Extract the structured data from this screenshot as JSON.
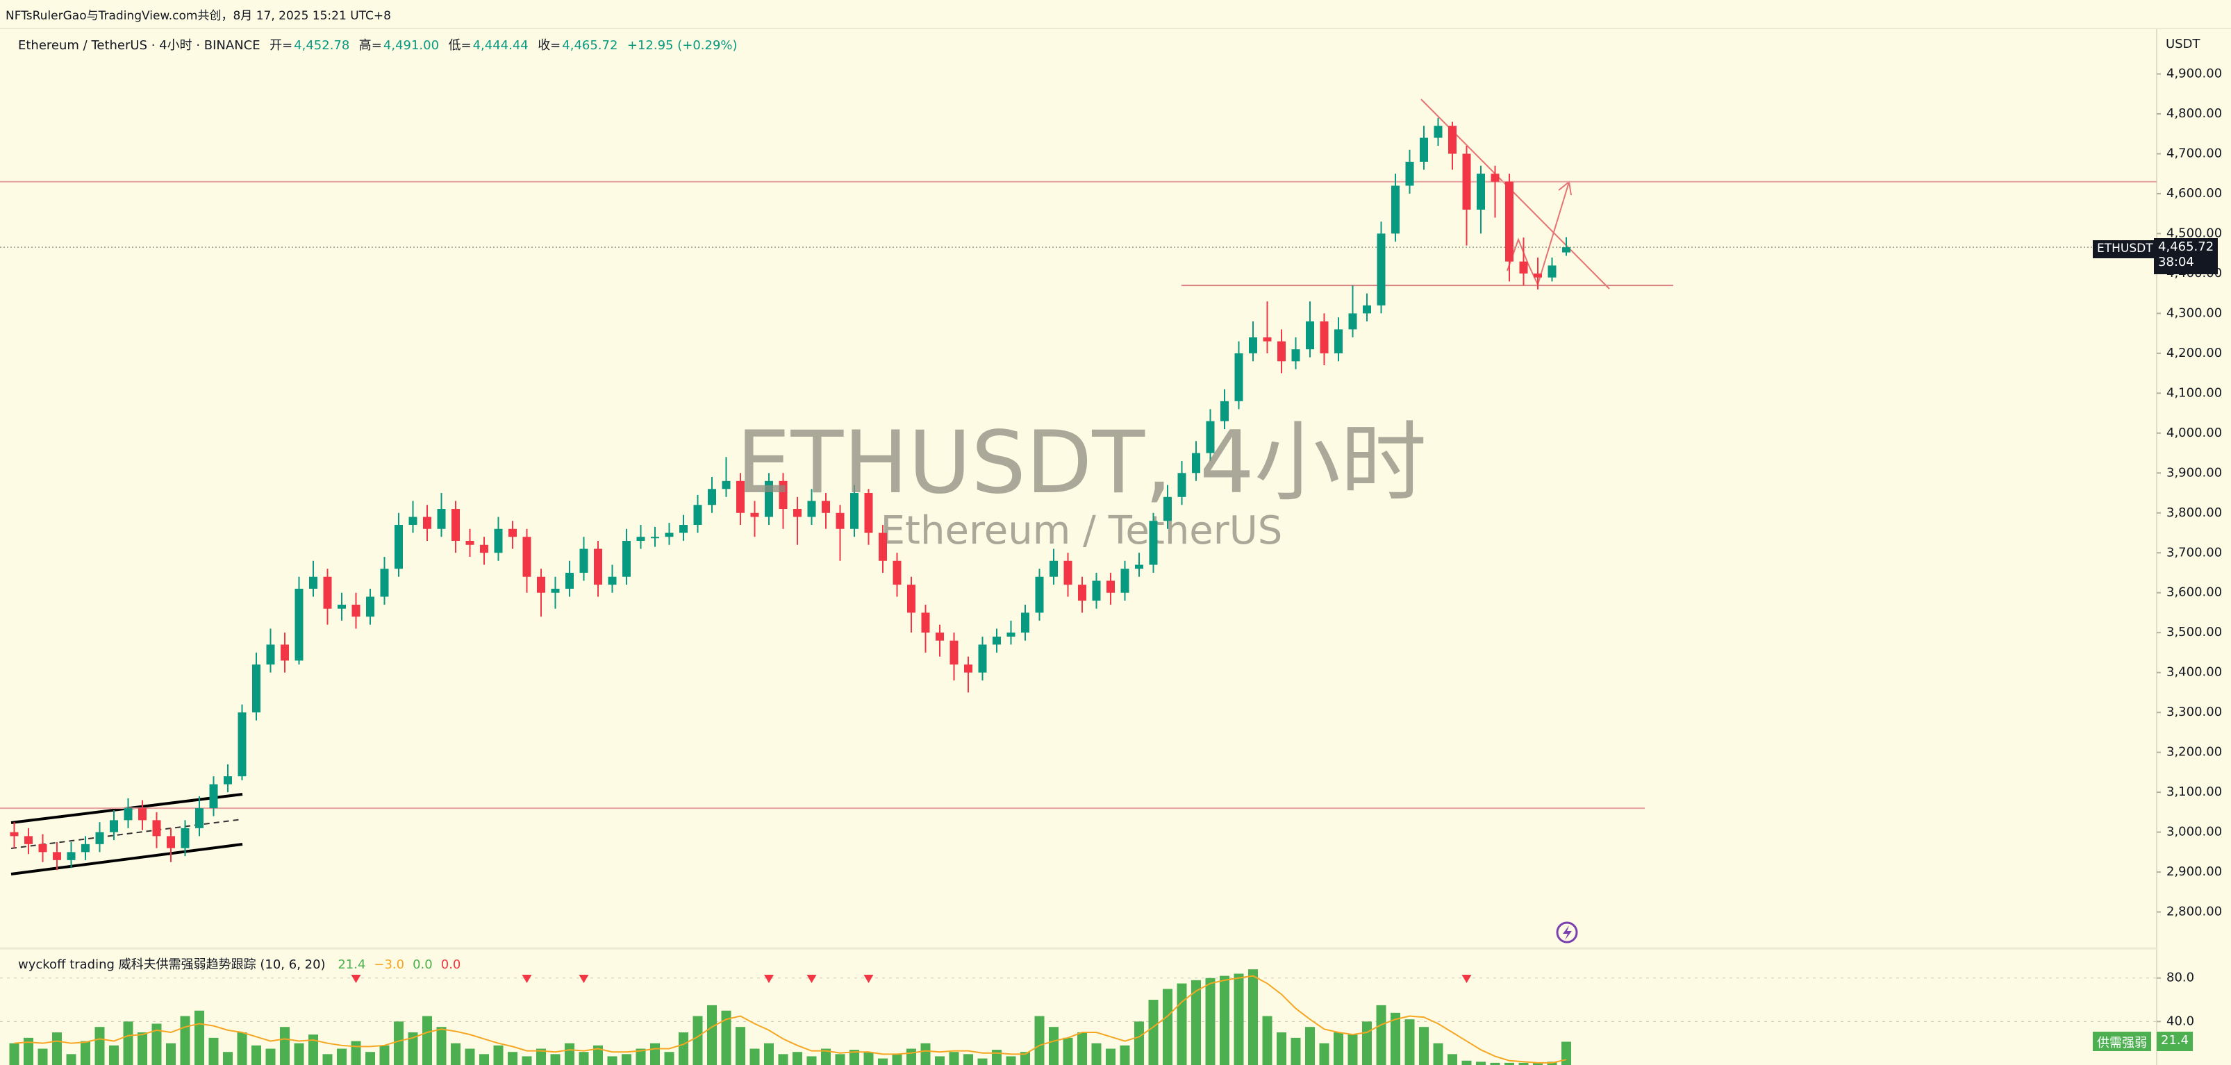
{
  "header": {
    "credit": "NFTsRulerGao与TradingView.com共创，8月 17, 2025 15:21 UTC+8"
  },
  "chart_data": [
    {
      "type": "candlestick",
      "symbol_line": "Ethereum / TetherUS · 4小时 · BINANCE",
      "ohlc_prefixes": {
        "open": "开=",
        "high": "高=",
        "low": "低=",
        "close": "收="
      },
      "ohlc_labels": {
        "open": "4,452.78",
        "high": "4,491.00",
        "low": "4,444.44",
        "close": "4,465.72"
      },
      "change_label": "+12.95 (+0.29%)",
      "watermark": "ETHUSDT, 4小时",
      "watermark_subtitle": "Ethereum / TetherUS",
      "currency": "USDT",
      "price_tag": {
        "symbol": "ETHUSDT",
        "price": "4,465.72",
        "countdown": "38:04"
      },
      "up_color": "#089981",
      "down_color": "#f23645",
      "open": [
        3000,
        2990,
        2970,
        2950,
        2930,
        2950,
        2970,
        3000,
        3030,
        3060,
        3030,
        2990,
        2960,
        3010,
        3060,
        3120,
        3140,
        3300,
        3420,
        3470,
        3430,
        3610,
        3640,
        3560,
        3570,
        3540,
        3590,
        3660,
        3770,
        3790,
        3760,
        3810,
        3730,
        3720,
        3700,
        3760,
        3740,
        3640,
        3600,
        3610,
        3650,
        3710,
        3620,
        3640,
        3730,
        3740,
        3740,
        3750,
        3770,
        3820,
        3860,
        3880,
        3800,
        3790,
        3880,
        3810,
        3790,
        3830,
        3800,
        3760,
        3850,
        3750,
        3680,
        3620,
        3550,
        3500,
        3480,
        3420,
        3400,
        3470,
        3490,
        3500,
        3550,
        3640,
        3680,
        3620,
        3580,
        3630,
        3600,
        3660,
        3670,
        3780,
        3840,
        3900,
        3950,
        4030,
        4080,
        4200,
        4240,
        4230,
        4180,
        4210,
        4280,
        4200,
        4260,
        4300,
        4320,
        4500,
        4620,
        4680,
        4740,
        4770,
        4700,
        4560,
        4650,
        4630,
        4430,
        4400,
        4390,
        4452.78
      ],
      "high": [
        3025,
        3010,
        2995,
        2975,
        2975,
        2990,
        3025,
        3055,
        3085,
        3080,
        3050,
        3010,
        3030,
        3090,
        3140,
        3170,
        3320,
        3450,
        3510,
        3500,
        3640,
        3680,
        3660,
        3600,
        3600,
        3610,
        3690,
        3800,
        3830,
        3820,
        3850,
        3830,
        3760,
        3740,
        3790,
        3780,
        3760,
        3660,
        3640,
        3680,
        3740,
        3730,
        3670,
        3760,
        3770,
        3765,
        3775,
        3795,
        3845,
        3890,
        3940,
        3900,
        3830,
        3900,
        3900,
        3840,
        3860,
        3850,
        3820,
        3870,
        3860,
        3770,
        3700,
        3640,
        3570,
        3520,
        3500,
        3440,
        3490,
        3510,
        3530,
        3570,
        3660,
        3710,
        3700,
        3640,
        3650,
        3650,
        3680,
        3700,
        3800,
        3870,
        3930,
        3980,
        4060,
        4110,
        4230,
        4280,
        4330,
        4260,
        4240,
        4330,
        4300,
        4290,
        4370,
        4350,
        4530,
        4650,
        4710,
        4770,
        4790,
        4780,
        4720,
        4670,
        4670,
        4650,
        4490,
        4440,
        4440,
        4491.0
      ],
      "low": [
        2960,
        2945,
        2925,
        2905,
        2910,
        2930,
        2950,
        2980,
        3010,
        3005,
        2960,
        2925,
        2940,
        2990,
        3040,
        3100,
        3130,
        3280,
        3400,
        3400,
        3420,
        3590,
        3520,
        3530,
        3510,
        3520,
        3570,
        3640,
        3750,
        3730,
        3740,
        3700,
        3690,
        3670,
        3680,
        3710,
        3600,
        3540,
        3560,
        3590,
        3630,
        3590,
        3600,
        3620,
        3710,
        3715,
        3720,
        3730,
        3750,
        3800,
        3840,
        3770,
        3740,
        3770,
        3760,
        3720,
        3770,
        3760,
        3680,
        3740,
        3720,
        3650,
        3590,
        3500,
        3450,
        3440,
        3380,
        3350,
        3380,
        3450,
        3470,
        3480,
        3530,
        3620,
        3590,
        3550,
        3560,
        3570,
        3580,
        3640,
        3650,
        3760,
        3820,
        3880,
        3930,
        4010,
        4060,
        4180,
        4200,
        4150,
        4160,
        4190,
        4170,
        4180,
        4240,
        4280,
        4300,
        4480,
        4600,
        4660,
        4720,
        4660,
        4470,
        4500,
        4540,
        4380,
        4370,
        4360,
        4380,
        4444.44
      ],
      "close": [
        2990,
        2970,
        2950,
        2930,
        2950,
        2970,
        3000,
        3030,
        3060,
        3030,
        2990,
        2960,
        3010,
        3060,
        3120,
        3140,
        3300,
        3420,
        3470,
        3430,
        3610,
        3640,
        3560,
        3570,
        3540,
        3590,
        3660,
        3770,
        3790,
        3760,
        3810,
        3730,
        3720,
        3700,
        3760,
        3740,
        3640,
        3600,
        3610,
        3650,
        3710,
        3620,
        3640,
        3730,
        3740,
        3740,
        3750,
        3770,
        3820,
        3860,
        3880,
        3800,
        3790,
        3880,
        3810,
        3790,
        3830,
        3800,
        3760,
        3850,
        3750,
        3680,
        3620,
        3550,
        3500,
        3480,
        3420,
        3400,
        3470,
        3490,
        3500,
        3550,
        3640,
        3680,
        3620,
        3580,
        3630,
        3600,
        3660,
        3670,
        3780,
        3840,
        3900,
        3950,
        4030,
        4080,
        4200,
        4240,
        4230,
        4180,
        4210,
        4280,
        4200,
        4260,
        4300,
        4320,
        4500,
        4620,
        4680,
        4740,
        4770,
        4700,
        4560,
        4650,
        4630,
        4430,
        4400,
        4390,
        4420,
        4465.72
      ],
      "levels": [
        {
          "value": 4630,
          "color": "#e8a0a0"
        },
        {
          "value": 4370,
          "color": "#d98080"
        },
        {
          "value": 3060,
          "color": "#e8a0a0"
        }
      ],
      "ylim": [
        2714,
        5014
      ],
      "yticks": [
        {
          "value": 2800,
          "label": "2,800.00"
        },
        {
          "value": 2900,
          "label": "2,900.00"
        },
        {
          "value": 3000,
          "label": "3,000.00"
        },
        {
          "value": 3100,
          "label": "3,100.00"
        },
        {
          "value": 3200,
          "label": "3,200.00"
        },
        {
          "value": 3300,
          "label": "3,300.00"
        },
        {
          "value": 3400,
          "label": "3,400.00"
        },
        {
          "value": 3500,
          "label": "3,500.00"
        },
        {
          "value": 3600,
          "label": "3,600.00"
        },
        {
          "value": 3700,
          "label": "3,700.00"
        },
        {
          "value": 3800,
          "label": "3,800.00"
        },
        {
          "value": 3900,
          "label": "3,900.00"
        },
        {
          "value": 4000,
          "label": "4,000.00"
        },
        {
          "value": 4100,
          "label": "4,100.00"
        },
        {
          "value": 4200,
          "label": "4,200.00"
        },
        {
          "value": 4300,
          "label": "4,300.00"
        },
        {
          "value": 4400,
          "label": "4,400.00"
        },
        {
          "value": 4500,
          "label": "4,500.00"
        },
        {
          "value": 4600,
          "label": "4,600.00"
        },
        {
          "value": 4700,
          "label": "4,700.00"
        },
        {
          "value": 4800,
          "label": "4,800.00"
        },
        {
          "value": 4900,
          "label": "4,900.00"
        }
      ],
      "grid": false
    },
    {
      "type": "bar",
      "title": "wyckoff trading 威科夫供需强弱趋势跟踪 (10, 6, 20)",
      "readouts": [
        {
          "label": "21.4",
          "color": "#4caf50"
        },
        {
          "label": "−3.0",
          "color": "#f5a623"
        },
        {
          "label": "0.0",
          "color": "#4caf50"
        },
        {
          "label": "0.0",
          "color": "#f23645"
        }
      ],
      "color": "#4caf50",
      "line_color": "#f5a623",
      "signal_color": "#f23645",
      "values": [
        20,
        25,
        15,
        30,
        10,
        22,
        35,
        18,
        40,
        30,
        38,
        20,
        45,
        50,
        25,
        12,
        30,
        18,
        15,
        35,
        20,
        28,
        10,
        15,
        22,
        12,
        18,
        40,
        30,
        45,
        35,
        20,
        15,
        10,
        18,
        12,
        8,
        15,
        10,
        20,
        12,
        18,
        8,
        10,
        15,
        20,
        12,
        30,
        45,
        55,
        50,
        35,
        15,
        20,
        10,
        12,
        8,
        15,
        10,
        14,
        12,
        6,
        10,
        15,
        20,
        8,
        12,
        10,
        6,
        14,
        8,
        12,
        45,
        35,
        25,
        30,
        20,
        15,
        18,
        40,
        60,
        70,
        75,
        78,
        80,
        82,
        84,
        88,
        45,
        30,
        25,
        35,
        20,
        30,
        28,
        40,
        55,
        48,
        42,
        35,
        20,
        10,
        4,
        3,
        2,
        2,
        2,
        2,
        3,
        21.4
      ],
      "signal_line": [
        20,
        21,
        20,
        22,
        20,
        21,
        24,
        22,
        27,
        28,
        32,
        30,
        35,
        38,
        36,
        32,
        30,
        26,
        22,
        24,
        22,
        23,
        20,
        18,
        17,
        17,
        18,
        22,
        25,
        30,
        33,
        31,
        28,
        24,
        20,
        17,
        13,
        13,
        12,
        14,
        13,
        15,
        12,
        12,
        13,
        15,
        15,
        19,
        26,
        35,
        42,
        45,
        38,
        32,
        24,
        18,
        13,
        13,
        11,
        12,
        12,
        10,
        10,
        11,
        13,
        12,
        13,
        13,
        11,
        11,
        10,
        10,
        18,
        22,
        25,
        30,
        30,
        26,
        22,
        26,
        35,
        45,
        58,
        68,
        75,
        78,
        80,
        82,
        75,
        65,
        52,
        42,
        33,
        30,
        28,
        30,
        37,
        42,
        45,
        44,
        38,
        30,
        22,
        14,
        8,
        4,
        3,
        2,
        2,
        5
      ],
      "signals": [
        24,
        36,
        40,
        53,
        56,
        60,
        102
      ],
      "tag": {
        "name": "供需强弱",
        "value": "21.4"
      },
      "ylim": [
        0,
        106
      ],
      "yticks": [
        {
          "value": 40,
          "label": "40.0"
        },
        {
          "value": 80,
          "label": "80.0"
        }
      ]
    }
  ]
}
